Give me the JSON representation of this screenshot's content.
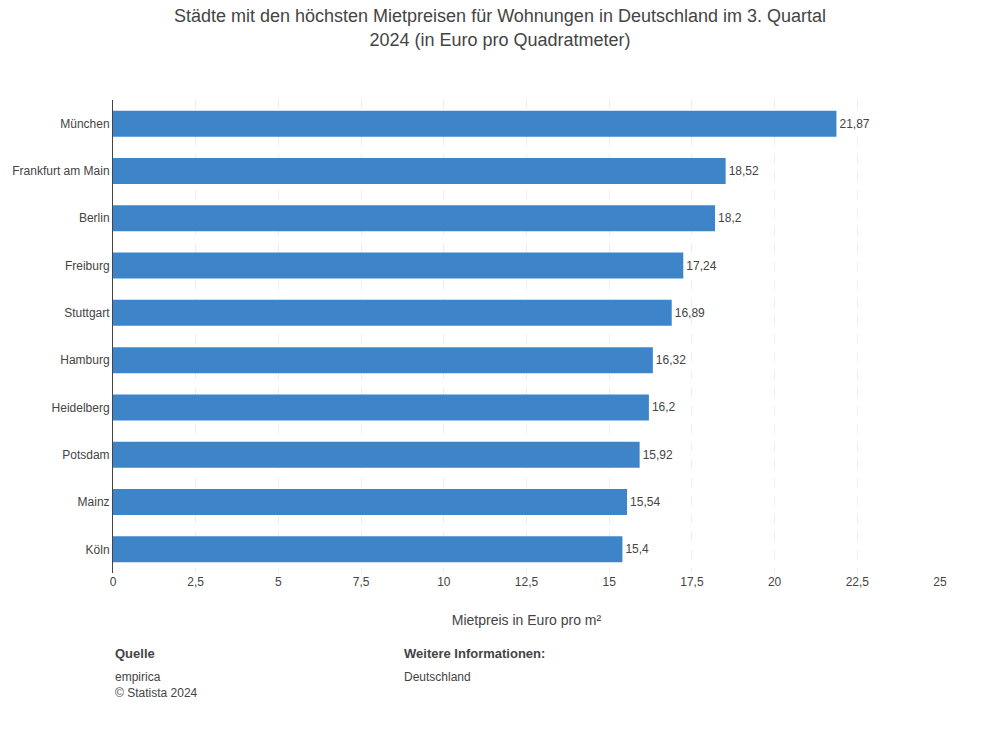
{
  "chart_data": {
    "type": "bar",
    "orientation": "horizontal",
    "title": "Städte mit den höchsten Mietpreisen für Wohnungen in Deutschland im 3. Quartal\n2024 (in Euro pro Quadratmeter)",
    "categories": [
      "München",
      "Frankfurt am Main",
      "Berlin",
      "Freiburg",
      "Stuttgart",
      "Hamburg",
      "Heidelberg",
      "Potsdam",
      "Mainz",
      "Köln"
    ],
    "values": [
      21.87,
      18.52,
      18.2,
      17.24,
      16.89,
      16.32,
      16.2,
      15.92,
      15.54,
      15.4
    ],
    "value_labels": [
      "21,87",
      "18,52",
      "18,2",
      "17,24",
      "16,89",
      "16,32",
      "16,2",
      "15,92",
      "15,54",
      "15,4"
    ],
    "data_labels": true,
    "color": "#3d85c8",
    "xlabel": "Mietpreis in Euro pro m²",
    "xlim": [
      0,
      25
    ],
    "xticks": [
      0,
      {
        "value": 2.5,
        "label": "2,5"
      },
      5,
      {
        "value": 7.5,
        "label": "7,5"
      },
      10,
      {
        "value": 12.5,
        "label": "12,5"
      },
      15,
      {
        "value": 17.5,
        "label": "17,5"
      },
      20,
      {
        "value": 22.5,
        "label": "22,5"
      },
      25
    ],
    "grid": true,
    "annotations": [
      {
        "label": "Quelle",
        "text": "empirica\n© Statista 2024"
      },
      {
        "label": "Weitere Informationen:",
        "text": "Deutschland"
      }
    ]
  }
}
